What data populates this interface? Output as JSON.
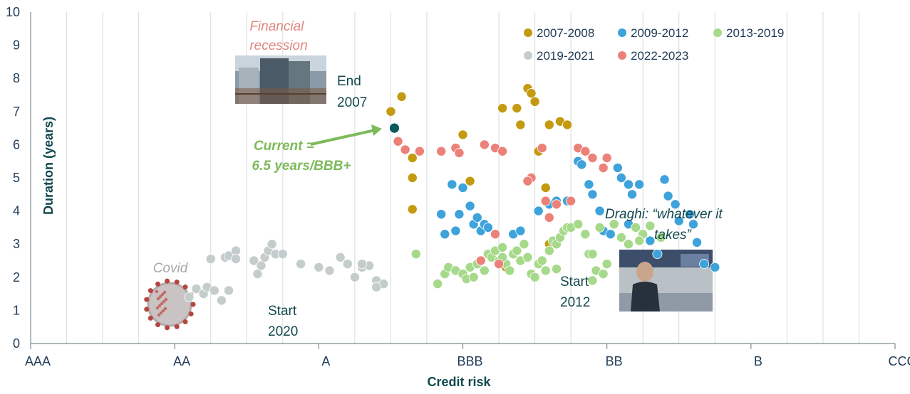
{
  "chart_data": {
    "type": "scatter",
    "title": "",
    "xlabel": "Credit risk",
    "ylabel": "Duration (years)",
    "x_categories": [
      "AAA",
      "AA",
      "A",
      "BBB",
      "BB",
      "B",
      "CCC"
    ],
    "xlim": [
      0,
      24
    ],
    "ylim": [
      0,
      10
    ],
    "y_ticks": [
      "0",
      "1",
      "2",
      "3",
      "4",
      "5",
      "6",
      "7",
      "8",
      "9",
      "10"
    ],
    "grid": "vertical",
    "legend_position": "top-right",
    "colors": {
      "2007-2008": "#c49a10",
      "2009-2012": "#3ea2db",
      "2013-2019": "#a6d98a",
      "2019-2021": "#c5cccc",
      "2022-2023": "#ec8179",
      "current": "#0b5a5c",
      "axis": "#7d8d8f",
      "grid": "#d6dcdc"
    },
    "series": [
      {
        "name": "2007-2008",
        "color": "#c49a10",
        "points": [
          [
            10.0,
            7.0
          ],
          [
            10.3,
            7.45
          ],
          [
            10.6,
            5.6
          ],
          [
            10.6,
            5.0
          ],
          [
            10.6,
            4.05
          ],
          [
            12.0,
            6.3
          ],
          [
            12.2,
            4.9
          ],
          [
            13.1,
            7.1
          ],
          [
            13.5,
            7.1
          ],
          [
            13.6,
            6.6
          ],
          [
            13.8,
            7.7
          ],
          [
            13.9,
            7.55
          ],
          [
            14.0,
            7.3
          ],
          [
            14.1,
            5.8
          ],
          [
            14.3,
            4.7
          ],
          [
            14.4,
            6.6
          ],
          [
            14.7,
            6.7
          ],
          [
            14.9,
            6.6
          ],
          [
            13.2,
            2.3
          ],
          [
            14.4,
            3.0
          ]
        ]
      },
      {
        "name": "2009-2012",
        "color": "#3ea2db",
        "points": [
          [
            11.4,
            3.9
          ],
          [
            11.5,
            3.3
          ],
          [
            11.7,
            4.8
          ],
          [
            11.8,
            3.4
          ],
          [
            11.9,
            3.9
          ],
          [
            12.0,
            4.7
          ],
          [
            12.2,
            4.15
          ],
          [
            12.3,
            3.6
          ],
          [
            12.4,
            3.8
          ],
          [
            12.5,
            3.4
          ],
          [
            12.6,
            3.6
          ],
          [
            12.7,
            3.5
          ],
          [
            13.4,
            3.3
          ],
          [
            13.6,
            3.4
          ],
          [
            14.1,
            4.0
          ],
          [
            14.4,
            4.2
          ],
          [
            14.6,
            4.3
          ],
          [
            14.9,
            4.3
          ],
          [
            15.2,
            5.5
          ],
          [
            15.3,
            5.4
          ],
          [
            15.5,
            4.8
          ],
          [
            15.6,
            4.5
          ],
          [
            15.8,
            4.0
          ],
          [
            15.9,
            3.4
          ],
          [
            16.1,
            3.3
          ],
          [
            16.3,
            5.3
          ],
          [
            16.4,
            5.0
          ],
          [
            16.6,
            4.8
          ],
          [
            16.7,
            4.5
          ],
          [
            16.9,
            4.8
          ],
          [
            17.2,
            3.1
          ],
          [
            17.4,
            2.7
          ],
          [
            17.6,
            4.95
          ],
          [
            17.7,
            4.45
          ],
          [
            17.9,
            4.2
          ],
          [
            18.0,
            3.7
          ],
          [
            18.3,
            3.9
          ],
          [
            18.4,
            3.6
          ],
          [
            18.5,
            3.05
          ],
          [
            18.7,
            2.4
          ],
          [
            19.0,
            2.3
          ],
          [
            16.6,
            3.6
          ]
        ]
      },
      {
        "name": "2013-2019",
        "color": "#a6d98a",
        "points": [
          [
            10.7,
            2.7
          ],
          [
            11.3,
            1.8
          ],
          [
            11.5,
            2.1
          ],
          [
            11.6,
            2.3
          ],
          [
            11.8,
            2.2
          ],
          [
            12.0,
            2.1
          ],
          [
            12.2,
            2.3
          ],
          [
            12.4,
            2.4
          ],
          [
            12.5,
            2.5
          ],
          [
            12.7,
            2.7
          ],
          [
            12.8,
            2.6
          ],
          [
            12.9,
            2.8
          ],
          [
            13.0,
            2.5
          ],
          [
            13.1,
            2.9
          ],
          [
            13.2,
            2.4
          ],
          [
            13.3,
            2.2
          ],
          [
            13.4,
            2.7
          ],
          [
            13.5,
            2.8
          ],
          [
            13.6,
            2.5
          ],
          [
            13.7,
            3.0
          ],
          [
            13.8,
            2.6
          ],
          [
            13.9,
            2.1
          ],
          [
            14.0,
            2.0
          ],
          [
            14.1,
            2.4
          ],
          [
            14.2,
            2.5
          ],
          [
            14.3,
            2.2
          ],
          [
            14.4,
            2.8
          ],
          [
            14.5,
            3.1
          ],
          [
            14.6,
            3.0
          ],
          [
            14.7,
            3.2
          ],
          [
            14.8,
            3.4
          ],
          [
            14.9,
            3.5
          ],
          [
            15.0,
            3.5
          ],
          [
            15.2,
            3.6
          ],
          [
            15.4,
            3.3
          ],
          [
            15.5,
            2.7
          ],
          [
            15.6,
            1.9
          ],
          [
            15.7,
            2.2
          ],
          [
            15.8,
            3.5
          ],
          [
            15.9,
            2.1
          ],
          [
            16.0,
            2.4
          ],
          [
            16.2,
            3.6
          ],
          [
            16.4,
            3.2
          ],
          [
            16.6,
            3.0
          ],
          [
            16.8,
            3.5
          ],
          [
            17.0,
            3.3
          ],
          [
            17.2,
            3.55
          ],
          [
            17.5,
            3.2
          ],
          [
            16.9,
            3.1
          ],
          [
            12.6,
            2.2
          ],
          [
            13.1,
            2.6
          ],
          [
            12.1,
            1.95
          ],
          [
            14.6,
            2.25
          ],
          [
            12.3,
            2.0
          ],
          [
            15.6,
            2.7
          ]
        ]
      },
      {
        "name": "2019-2021",
        "color": "#c5cccc",
        "points": [
          [
            4.4,
            1.4
          ],
          [
            4.6,
            1.65
          ],
          [
            4.8,
            1.5
          ],
          [
            4.9,
            1.7
          ],
          [
            5.1,
            1.6
          ],
          [
            5.0,
            2.55
          ],
          [
            5.3,
            1.3
          ],
          [
            5.5,
            1.6
          ],
          [
            5.4,
            2.6
          ],
          [
            5.5,
            2.65
          ],
          [
            5.7,
            2.8
          ],
          [
            5.7,
            2.55
          ],
          [
            6.2,
            2.5
          ],
          [
            6.3,
            2.1
          ],
          [
            6.4,
            2.35
          ],
          [
            6.5,
            2.6
          ],
          [
            6.6,
            2.8
          ],
          [
            6.7,
            3.0
          ],
          [
            6.8,
            2.7
          ],
          [
            7.0,
            2.7
          ],
          [
            7.5,
            2.4
          ],
          [
            8.0,
            2.3
          ],
          [
            8.3,
            2.2
          ],
          [
            8.6,
            2.6
          ],
          [
            8.8,
            2.4
          ],
          [
            9.0,
            2.0
          ],
          [
            9.2,
            2.3
          ],
          [
            9.4,
            2.35
          ],
          [
            9.6,
            1.9
          ],
          [
            9.8,
            1.8
          ],
          [
            9.6,
            1.7
          ],
          [
            9.2,
            2.4
          ]
        ]
      },
      {
        "name": "2022-2023",
        "color": "#ec8179",
        "points": [
          [
            10.2,
            6.1
          ],
          [
            10.4,
            5.85
          ],
          [
            10.8,
            5.8
          ],
          [
            11.4,
            5.8
          ],
          [
            11.8,
            5.9
          ],
          [
            11.9,
            5.75
          ],
          [
            12.6,
            6.0
          ],
          [
            12.9,
            5.9
          ],
          [
            13.1,
            5.8
          ],
          [
            13.9,
            5.0
          ],
          [
            14.3,
            4.3
          ],
          [
            14.6,
            4.2
          ],
          [
            15.0,
            4.3
          ],
          [
            15.2,
            5.9
          ],
          [
            15.4,
            5.8
          ],
          [
            15.6,
            5.6
          ],
          [
            15.9,
            5.3
          ],
          [
            16.0,
            5.6
          ],
          [
            12.5,
            2.5
          ],
          [
            12.9,
            3.3
          ],
          [
            13.0,
            2.4
          ],
          [
            14.2,
            5.9
          ],
          [
            14.4,
            3.8
          ],
          [
            13.8,
            4.9
          ]
        ]
      }
    ],
    "highlight": {
      "name": "Current",
      "x": 10.1,
      "y": 6.5,
      "color": "#0b5a5c"
    }
  },
  "annotations": {
    "financial": {
      "line1": "Financial",
      "line2": "recession",
      "color": "#e0867d"
    },
    "end2007": {
      "line1": "End",
      "line2": "2007",
      "color": "#12484e"
    },
    "current": {
      "line1": "Current =",
      "line2": "6.5 years/BBB+",
      "color": "#7dba5b"
    },
    "draghi": {
      "line1": "Draghi: “whatever it",
      "line2": "takes”",
      "color": "#12484e"
    },
    "covid": {
      "text": "Covid",
      "color": "#a8a8a8"
    },
    "start2020": {
      "line1": "Start",
      "line2": "2020",
      "color": "#12484e"
    },
    "start2012": {
      "line1": "Start",
      "line2": "2012",
      "color": "#12484e"
    }
  }
}
